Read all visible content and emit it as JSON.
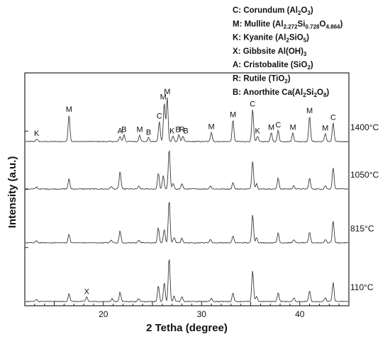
{
  "legend": [
    {
      "letter": "C",
      "name": "Corundum",
      "formula": [
        [
          "(Al",
          ""
        ],
        [
          "2",
          "sub"
        ],
        [
          "O",
          ""
        ],
        [
          "3",
          "sub"
        ],
        [
          ")",
          ""
        ]
      ]
    },
    {
      "letter": "M",
      "name": "Mullite",
      "formula": [
        [
          "(Al",
          ""
        ],
        [
          "2.272",
          "sub"
        ],
        [
          "Si",
          ""
        ],
        [
          "0.728",
          "sub"
        ],
        [
          "O",
          ""
        ],
        [
          "4.864",
          "sub"
        ],
        [
          ")",
          ""
        ]
      ]
    },
    {
      "letter": "K",
      "name": "Kyanite",
      "formula": [
        [
          "(Al",
          ""
        ],
        [
          "2",
          "sub"
        ],
        [
          "SiO",
          ""
        ],
        [
          "5",
          "sub"
        ],
        [
          ")",
          ""
        ]
      ]
    },
    {
      "letter": "X",
      "name": "Gibbsite",
      "formula": [
        [
          "Al(OH)",
          ""
        ],
        [
          "3",
          "sub"
        ]
      ]
    },
    {
      "letter": "A",
      "name": "Cristobalite",
      "formula": [
        [
          "(SiO",
          ""
        ],
        [
          "2",
          "sub"
        ],
        [
          ")",
          ""
        ]
      ]
    },
    {
      "letter": "R",
      "name": "Rutile",
      "formula": [
        [
          "(TiO",
          ""
        ],
        [
          "2",
          "sub"
        ],
        [
          ")",
          ""
        ]
      ]
    },
    {
      "letter": "B",
      "name": "Anorthite",
      "formula": [
        [
          "Ca(Al",
          ""
        ],
        [
          "2",
          "sub"
        ],
        [
          "Si",
          ""
        ],
        [
          "2",
          "sub"
        ],
        [
          "O",
          ""
        ],
        [
          "8",
          "sub"
        ],
        [
          ")",
          ""
        ]
      ]
    }
  ],
  "chart_data": {
    "type": "line",
    "xlabel": "2 Tetha (degree)",
    "ylabel": "Intensity (a.u.)",
    "xlim": [
      12,
      45
    ],
    "xticks": [
      20,
      30,
      40
    ],
    "y_tick_labels_shown": false,
    "series": [
      {
        "name": "1400°C",
        "peaks": [
          [
            13.2,
            4
          ],
          [
            16.5,
            40
          ],
          [
            21.7,
            8
          ],
          [
            22.1,
            10
          ],
          [
            23.7,
            10
          ],
          [
            24.6,
            6
          ],
          [
            25.7,
            30
          ],
          [
            26.2,
            58
          ],
          [
            26.5,
            66
          ],
          [
            27.1,
            8
          ],
          [
            27.7,
            10
          ],
          [
            28.1,
            8
          ],
          [
            31.0,
            14
          ],
          [
            33.2,
            32
          ],
          [
            35.2,
            48
          ],
          [
            35.7,
            8
          ],
          [
            37.1,
            13
          ],
          [
            37.8,
            17
          ],
          [
            39.3,
            13
          ],
          [
            41.0,
            38
          ],
          [
            42.6,
            12
          ],
          [
            43.4,
            28
          ]
        ]
      },
      {
        "name": "1050°C",
        "peaks": [
          [
            13.2,
            3
          ],
          [
            16.5,
            15
          ],
          [
            20.8,
            4
          ],
          [
            21.7,
            26
          ],
          [
            23.6,
            4
          ],
          [
            25.6,
            24
          ],
          [
            26.1,
            20
          ],
          [
            26.7,
            60
          ],
          [
            27.1,
            8
          ],
          [
            28.0,
            8
          ],
          [
            30.9,
            5
          ],
          [
            33.2,
            10
          ],
          [
            35.2,
            42
          ],
          [
            35.6,
            8
          ],
          [
            37.8,
            16
          ],
          [
            39.4,
            5
          ],
          [
            41.0,
            16
          ],
          [
            42.6,
            5
          ],
          [
            43.4,
            32
          ]
        ]
      },
      {
        "name": "815°C",
        "peaks": [
          [
            13.2,
            3
          ],
          [
            16.5,
            13
          ],
          [
            20.8,
            4
          ],
          [
            21.7,
            18
          ],
          [
            23.6,
            4
          ],
          [
            25.6,
            22
          ],
          [
            26.2,
            20
          ],
          [
            26.7,
            64
          ],
          [
            27.2,
            8
          ],
          [
            28.0,
            7
          ],
          [
            30.9,
            5
          ],
          [
            33.2,
            10
          ],
          [
            35.2,
            42
          ],
          [
            35.6,
            8
          ],
          [
            37.8,
            15
          ],
          [
            39.4,
            5
          ],
          [
            41.0,
            16
          ],
          [
            42.6,
            5
          ],
          [
            43.4,
            33
          ]
        ]
      },
      {
        "name": "110°C",
        "peaks": [
          [
            13.2,
            3
          ],
          [
            16.5,
            12
          ],
          [
            18.3,
            7
          ],
          [
            20.9,
            4
          ],
          [
            21.7,
            14
          ],
          [
            23.6,
            4
          ],
          [
            25.6,
            24
          ],
          [
            26.2,
            28
          ],
          [
            26.7,
            66
          ],
          [
            27.2,
            8
          ],
          [
            28.0,
            7
          ],
          [
            31.0,
            5
          ],
          [
            33.2,
            13
          ],
          [
            35.2,
            46
          ],
          [
            35.6,
            8
          ],
          [
            37.8,
            13
          ],
          [
            39.4,
            5
          ],
          [
            41.0,
            16
          ],
          [
            42.6,
            6
          ],
          [
            43.4,
            28
          ]
        ]
      }
    ],
    "peak_annotations": [
      {
        "series": "1400°C",
        "label": "K",
        "x": 13.2
      },
      {
        "series": "1400°C",
        "label": "M",
        "x": 16.5
      },
      {
        "series": "1400°C",
        "label": "A",
        "x": 21.7
      },
      {
        "series": "1400°C",
        "label": "B",
        "x": 22.1
      },
      {
        "series": "1400°C",
        "label": "M",
        "x": 23.7
      },
      {
        "series": "1400°C",
        "label": "B",
        "x": 24.6
      },
      {
        "series": "1400°C",
        "label": "C",
        "x": 25.7
      },
      {
        "series": "1400°C",
        "label": "M",
        "x": 26.1
      },
      {
        "series": "1400°C",
        "label": "M",
        "x": 26.5
      },
      {
        "series": "1400°C",
        "label": "K",
        "x": 27.0
      },
      {
        "series": "1400°C",
        "label": "B",
        "x": 27.6
      },
      {
        "series": "1400°C",
        "label": "R",
        "x": 28.0
      },
      {
        "series": "1400°C",
        "label": "B",
        "x": 28.4
      },
      {
        "series": "1400°C",
        "label": "M",
        "x": 31.0
      },
      {
        "series": "1400°C",
        "label": "M",
        "x": 33.2
      },
      {
        "series": "1400°C",
        "label": "C",
        "x": 35.2
      },
      {
        "series": "1400°C",
        "label": "K",
        "x": 35.7
      },
      {
        "series": "1400°C",
        "label": "M",
        "x": 37.1
      },
      {
        "series": "1400°C",
        "label": "C",
        "x": 37.8
      },
      {
        "series": "1400°C",
        "label": "M",
        "x": 39.3
      },
      {
        "series": "1400°C",
        "label": "M",
        "x": 41.0
      },
      {
        "series": "1400°C",
        "label": "M",
        "x": 42.6
      },
      {
        "series": "1400°C",
        "label": "C",
        "x": 43.4
      },
      {
        "series": "110°C",
        "label": "X",
        "x": 18.3
      }
    ]
  }
}
